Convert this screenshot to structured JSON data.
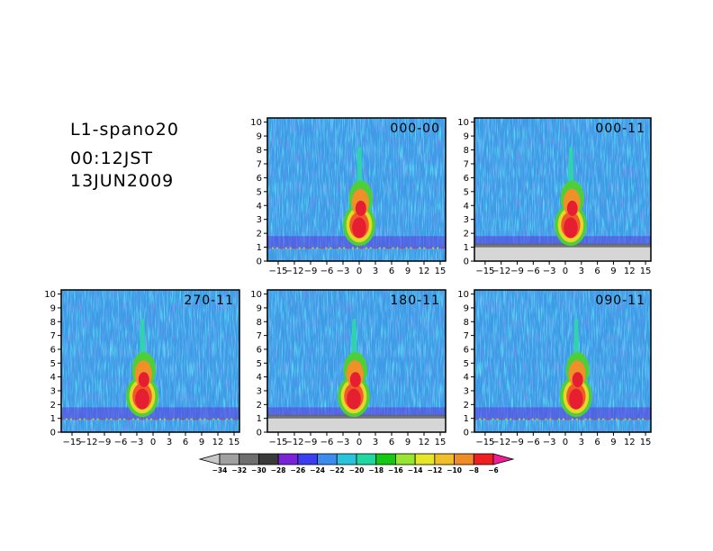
{
  "header": {
    "title": "L1-spano20",
    "time": "00:12JST",
    "date": "13JUN2009"
  },
  "chart_data": {
    "type": "heatmap",
    "x_ticks": [
      -15,
      -12,
      -9,
      -6,
      -3,
      0,
      3,
      6,
      9,
      12,
      15
    ],
    "xlim": [
      -17,
      16
    ],
    "y_ticks": [
      0,
      1,
      2,
      3,
      4,
      5,
      6,
      7,
      8,
      9,
      10
    ],
    "ylim": [
      0,
      10.3
    ],
    "panels": [
      {
        "label": "000-00"
      },
      {
        "label": "000-11"
      },
      {
        "label": "270-11"
      },
      {
        "label": "180-11"
      },
      {
        "label": "090-11"
      }
    ],
    "colorbar": {
      "labels": [
        "-34",
        "-32",
        "-30",
        "-28",
        "-26",
        "-24",
        "-22",
        "-20",
        "-18",
        "-16",
        "-14",
        "-12",
        "-10",
        "-8",
        "-6"
      ],
      "colors": [
        "#c8c8c8",
        "#a0a0a0",
        "#6e6e6e",
        "#3a3a3a",
        "#7a22d8",
        "#3c3cf0",
        "#3c8cf0",
        "#28c4dc",
        "#1ed8a0",
        "#14c814",
        "#96e632",
        "#e6e628",
        "#f0be28",
        "#f08c28",
        "#f01e1e",
        "#f01e96"
      ]
    }
  }
}
